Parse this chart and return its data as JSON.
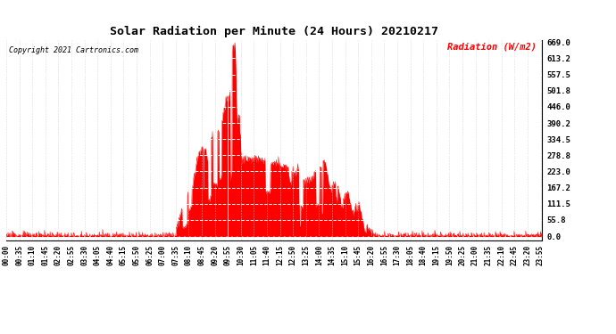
{
  "title": "Solar Radiation per Minute (24 Hours) 20210217",
  "copyright_text": "Copyright 2021 Cartronics.com",
  "ylabel": "Radiation (W/m2)",
  "ylabel_color": "#ff0000",
  "background_color": "#ffffff",
  "fill_color": "#ff0000",
  "line_color": "#ff0000",
  "grid_color": "#cccccc",
  "yticks": [
    0.0,
    55.8,
    111.5,
    167.2,
    223.0,
    278.8,
    334.5,
    390.2,
    446.0,
    501.8,
    557.5,
    613.2,
    669.0
  ],
  "ymax": 669.0,
  "ymin": 0.0,
  "total_minutes": 1440,
  "xtick_interval": 35,
  "dashed_line_color": "#ffffff",
  "bottom_dashed_color": "#ff0000",
  "peak_value": 669.0
}
